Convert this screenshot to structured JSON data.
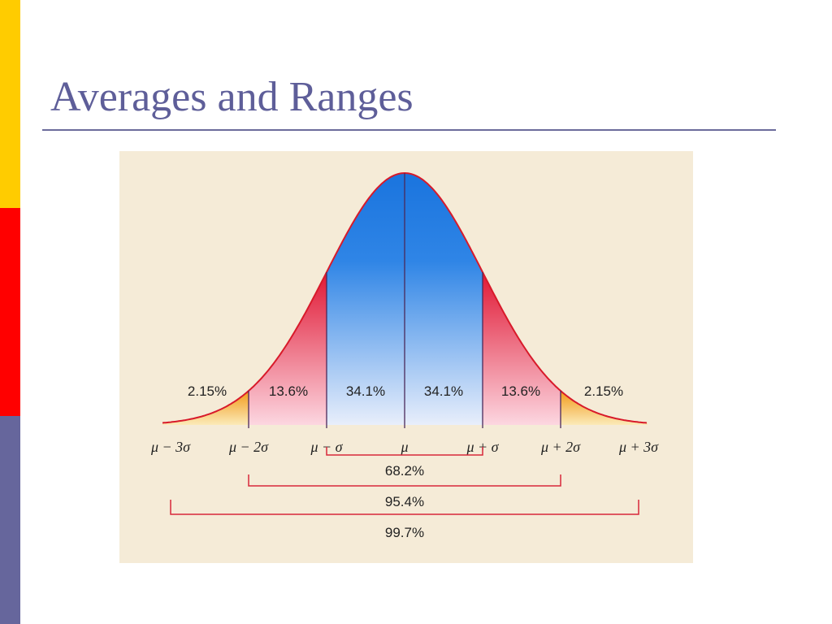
{
  "slide": {
    "title": "Averages and Ranges"
  },
  "figure": {
    "regions": [
      "2.15%",
      "13.6%",
      "34.1%",
      "34.1%",
      "13.6%",
      "2.15%"
    ],
    "axis_labels": [
      "μ − 3σ",
      "μ − 2σ",
      "μ − σ",
      "μ",
      "μ + σ",
      "μ + 2σ",
      "μ + 3σ"
    ],
    "ranges": [
      "68.2%",
      "95.4%",
      "99.7%"
    ]
  }
}
